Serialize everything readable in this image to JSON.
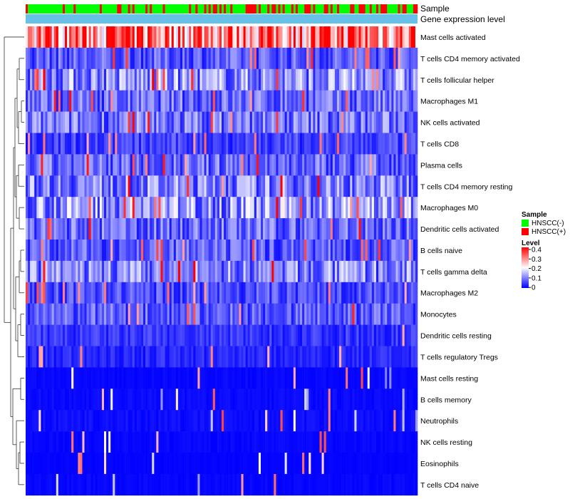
{
  "chart_data": {
    "type": "heatmap",
    "title": "",
    "annotation_rows": [
      "Sample",
      "Gene expression level"
    ],
    "rows": [
      "Mast cells activated",
      "T cells CD4 memory activated",
      "T cells follicular helper",
      "Macrophages M1",
      "NK cells activated",
      "T cells CD8",
      "Plasma cells",
      "T cells CD4 memory resting",
      "Macrophages M0",
      "Dendritic cells activated",
      "B cells naive",
      "T cells gamma delta",
      "Macrophages M2",
      "Monocytes",
      "Dendritic cells resting",
      "T cells regulatory  Tregs",
      "Mast cells resting",
      "B cells memory",
      "Neutrophils",
      "NK cells resting",
      "Eosinophils",
      "T cells CD4 naive"
    ],
    "row_mean_level": [
      0.3,
      0.07,
      0.11,
      0.08,
      0.09,
      0.05,
      0.08,
      0.1,
      0.12,
      0.08,
      0.07,
      0.1,
      0.06,
      0.07,
      0.04,
      0.03,
      0.01,
      0.015,
      0.02,
      0.01,
      0.005,
      0.01
    ],
    "n_samples": 180,
    "sample_legend": {
      "title": "Sample",
      "items": [
        {
          "label": "HNSCC(-)",
          "color": "#00ff00"
        },
        {
          "label": "HNSCC(+)",
          "color": "#ff0000"
        }
      ]
    },
    "level_legend": {
      "title": "Level",
      "ticks": [
        "0.4",
        "0.3",
        "0.2",
        "0.1",
        "0"
      ],
      "range": [
        0,
        0.4
      ]
    },
    "gene_expression_color": "#67c0e8",
    "colors": {
      "low": "#0000ff",
      "mid": "#ffffff",
      "high": "#ff0000"
    }
  }
}
